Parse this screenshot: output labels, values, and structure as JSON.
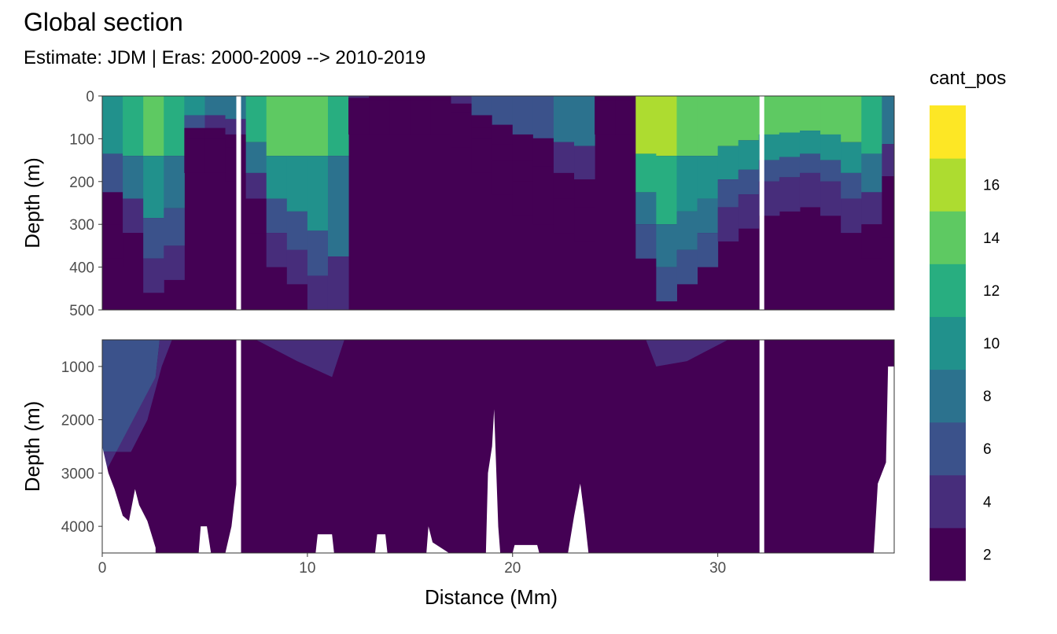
{
  "chart_data": {
    "type": "heatmap",
    "title": "Global section",
    "subtitle": "Estimate: JDM  | Eras: 2000-2009 --> 2010-2019",
    "xlabel": "Distance (Mm)",
    "xlim": [
      0,
      38.6
    ],
    "x_ticks": [
      "0",
      "10",
      "20",
      "30"
    ],
    "panels": [
      {
        "ylabel": "Depth (m)",
        "ylim": [
          0,
          500
        ],
        "y_ticks": [
          "0",
          "100",
          "200",
          "300",
          "400",
          "500"
        ],
        "y_reversed": true
      },
      {
        "ylabel": "Depth (m)",
        "ylim": [
          500,
          4500
        ],
        "y_ticks": [
          "1000",
          "2000",
          "3000",
          "4000"
        ],
        "y_reversed": true
      }
    ],
    "legend": {
      "title": "cant_pos",
      "labels": [
        "2",
        "4",
        "6",
        "8",
        "10",
        "12",
        "14",
        "16"
      ],
      "bins": [
        [
          0,
          2
        ],
        [
          2,
          4
        ],
        [
          4,
          6
        ],
        [
          6,
          8
        ],
        [
          8,
          10
        ],
        [
          10,
          12
        ],
        [
          12,
          14
        ],
        [
          14,
          16
        ],
        [
          16,
          18
        ]
      ],
      "colors": [
        "#440154",
        "#472d7b",
        "#3b528b",
        "#2c728e",
        "#21918c",
        "#28ae80",
        "#5ec962",
        "#addc30",
        "#fde725"
      ],
      "placement": "right"
    },
    "gaps_x": [
      6.65,
      32.15
    ],
    "upper_profile": {
      "x": [
        0,
        1,
        2,
        3,
        4,
        5,
        6,
        7,
        8,
        9,
        10,
        11,
        12,
        13,
        14,
        15,
        16,
        17,
        18,
        19,
        20,
        21,
        22,
        23,
        24,
        25,
        26,
        27,
        28,
        29,
        30,
        31,
        32,
        33,
        34,
        35,
        36,
        37,
        38
      ],
      "surface_value": [
        8,
        10,
        12,
        11,
        8,
        6,
        6,
        10,
        12,
        12,
        12,
        10,
        2,
        1,
        1,
        1,
        1,
        2,
        4,
        4,
        4,
        5,
        6,
        6,
        1,
        1,
        14,
        14,
        13,
        13,
        12,
        12,
        12,
        12,
        12,
        12,
        12,
        10,
        6
      ],
      "depth_threshold_200": [
        300,
        320,
        380,
        350,
        100,
        100,
        120,
        240,
        320,
        360,
        420,
        500,
        10,
        10,
        10,
        10,
        10,
        40,
        100,
        150,
        200,
        220,
        240,
        260,
        10,
        10,
        300,
        400,
        360,
        320,
        260,
        230,
        200,
        190,
        180,
        200,
        240,
        300,
        250
      ]
    }
  }
}
